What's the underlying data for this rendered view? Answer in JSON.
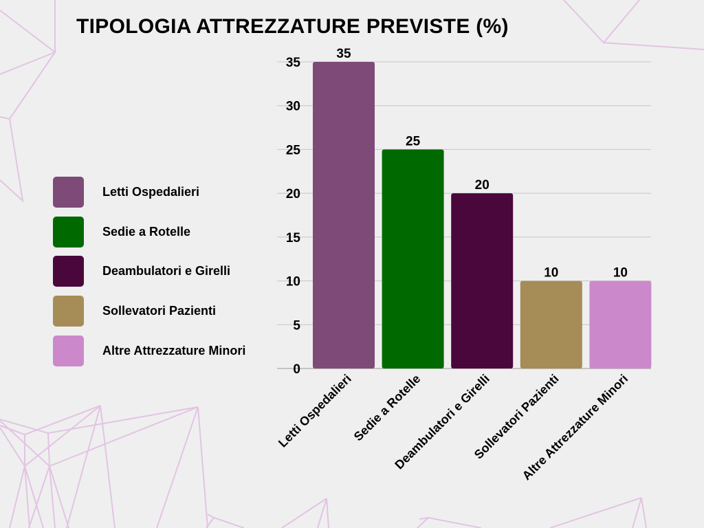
{
  "chart_data": {
    "type": "bar",
    "title": "TIPOLOGIA ATTREZZATURE PREVISTE (%)",
    "categories": [
      "Letti Ospedalieri",
      "Sedie a Rotelle",
      "Deambulatori e Girelli",
      "Sollevatori Pazienti",
      "Altre Attrezzature Minori"
    ],
    "values": [
      35,
      25,
      20,
      10,
      10
    ],
    "colors": [
      "#7e4a77",
      "#006a00",
      "#4a073c",
      "#a68d57",
      "#cb89cc"
    ],
    "ylim": [
      0,
      35
    ],
    "yticks": [
      0,
      5,
      10,
      15,
      20,
      25,
      30,
      35
    ],
    "xlabel": "",
    "ylabel": "",
    "grid": true,
    "legend": "left"
  }
}
